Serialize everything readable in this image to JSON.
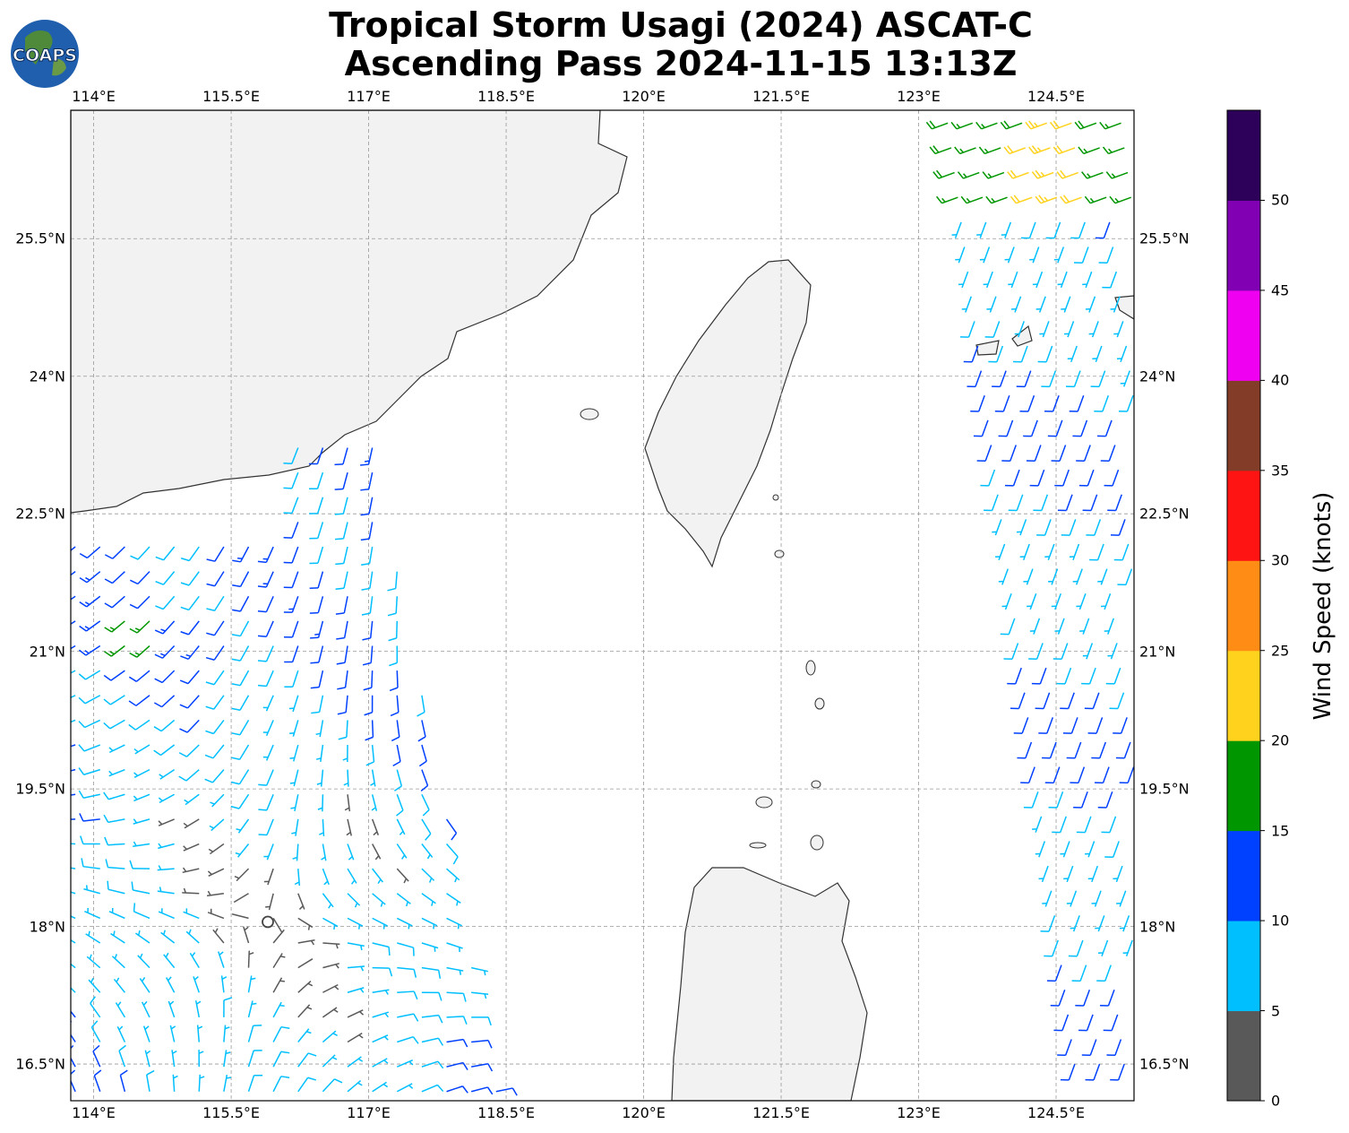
{
  "title": {
    "line1": "Tropical Storm Usagi (2024) ASCAT-C",
    "line2": "Ascending Pass 2024-11-15 13:13Z"
  },
  "logo": {
    "text": "COAPS",
    "icon": "globe-logo-icon"
  },
  "map": {
    "lon_range": [
      113.75,
      125.35
    ],
    "lat_range": [
      16.1,
      26.9
    ],
    "lon_ticks": [
      "114°E",
      "115.5°E",
      "117°E",
      "118.5°E",
      "120°E",
      "121.5°E",
      "123°E",
      "124.5°E"
    ],
    "lat_ticks": [
      "25.5°N",
      "24°N",
      "22.5°N",
      "21°N",
      "19.5°N",
      "18°N",
      "16.5°N"
    ],
    "gridlines": true,
    "land_color": "#f2f2f2",
    "coast_color": "#333333"
  },
  "colorbar": {
    "label": "Wind Speed (knots)",
    "ticks": [
      "0",
      "5",
      "10",
      "15",
      "20",
      "25",
      "30",
      "35",
      "40",
      "45",
      "50"
    ],
    "colors": [
      "#595959",
      "#00bfff",
      "#0040ff",
      "#009600",
      "#ffd21e",
      "#ff8c14",
      "#ff1414",
      "#823c28",
      "#f000f0",
      "#8200b4",
      "#2d0059"
    ]
  },
  "storm": {
    "center_lon": 115.9,
    "center_lat": 18.05
  }
}
